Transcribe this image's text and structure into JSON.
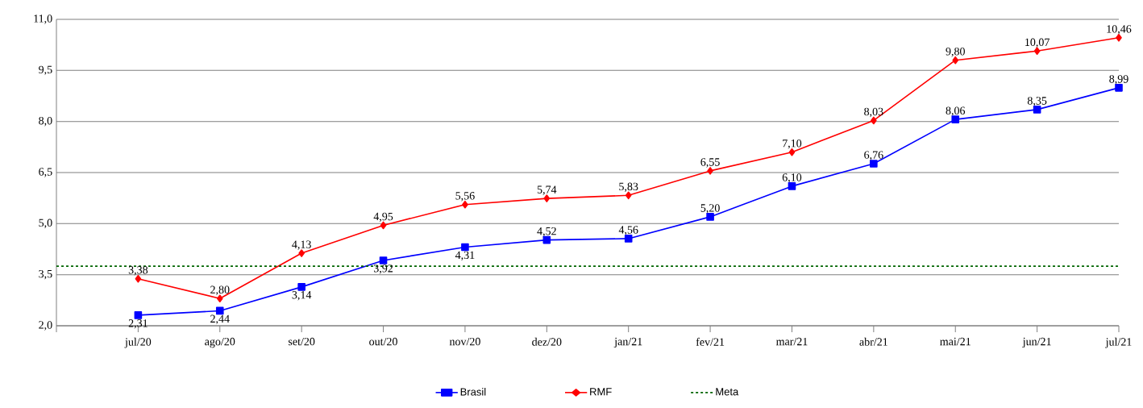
{
  "chart_data": {
    "type": "line",
    "categories": [
      "jul/20",
      "ago/20",
      "set/20",
      "out/20",
      "nov/20",
      "dez/20",
      "jan/21",
      "fev/21",
      "mar/21",
      "abr/21",
      "mai/21",
      "jun/21",
      "jul/21"
    ],
    "series": [
      {
        "name": "Brasil",
        "color": "#0000ff",
        "marker": "square",
        "values": [
          2.31,
          2.44,
          3.14,
          3.92,
          4.31,
          4.52,
          4.56,
          5.2,
          6.1,
          6.76,
          8.06,
          8.35,
          8.99
        ],
        "value_labels": [
          "2,31",
          "2,44",
          "3,14",
          "3,92",
          "4,31",
          "4,52",
          "4,56",
          "5,20",
          "6,10",
          "6,76",
          "8,06",
          "8,35",
          "8,99"
        ]
      },
      {
        "name": "RMF",
        "color": "#ff0000",
        "marker": "diamond",
        "values": [
          3.38,
          2.8,
          4.13,
          4.95,
          5.56,
          5.74,
          5.83,
          6.55,
          7.1,
          8.03,
          9.8,
          10.07,
          10.46
        ],
        "value_labels": [
          "3,38",
          "2,80",
          "4,13",
          "4,95",
          "5,56",
          "5,74",
          "5,83",
          "6,55",
          "7,10",
          "8,03",
          "9,80",
          "10,07",
          "10,46"
        ]
      }
    ],
    "ylim": [
      2,
      11
    ],
    "yticks": [
      {
        "value": 2,
        "label": "2,0"
      },
      {
        "value": 3.5,
        "label": "3,5"
      },
      {
        "value": 5,
        "label": "5,0"
      },
      {
        "value": 6.5,
        "label": "6,5"
      },
      {
        "value": 8,
        "label": "8,0"
      },
      {
        "value": 9.5,
        "label": "9,5"
      },
      {
        "value": 11,
        "label": "11,0"
      }
    ],
    "ref_lines": [
      {
        "axis": "y",
        "value": 3.75,
        "label": "Meta",
        "color": "#006400",
        "line_style": "dashed"
      }
    ],
    "grid": "y",
    "legend": "bottom",
    "line_style": "solid"
  }
}
